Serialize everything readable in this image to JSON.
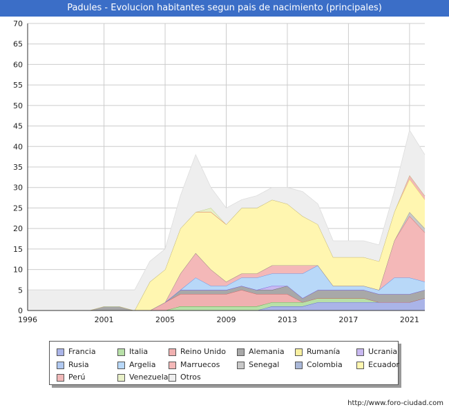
{
  "title": "Padules - Evolucion habitantes segun pais de nacimiento (principales)",
  "source": "http://www.foro-ciudad.com",
  "colors": {
    "title_bar": "#3b6ec7",
    "grid": "#cccccc",
    "axis": "#333333"
  },
  "chart_data": {
    "type": "area",
    "stacked": true,
    "x": [
      1996,
      1997,
      1998,
      1999,
      2000,
      2001,
      2002,
      2003,
      2004,
      2005,
      2006,
      2007,
      2008,
      2009,
      2010,
      2011,
      2012,
      2013,
      2014,
      2015,
      2016,
      2017,
      2018,
      2019,
      2020,
      2021,
      2022
    ],
    "xticks": [
      1996,
      2001,
      2005,
      2009,
      2013,
      2017,
      2021
    ],
    "ylim": [
      0,
      70
    ],
    "yticks": [
      0,
      5,
      10,
      15,
      20,
      25,
      30,
      35,
      40,
      45,
      50,
      55,
      60,
      65,
      70
    ],
    "grid": true,
    "legend_position": "bottom",
    "series": [
      {
        "name": "Francia",
        "fill": "#aab4e8",
        "stroke": "#5566cc",
        "values": [
          0,
          0,
          0,
          0,
          0,
          0,
          0,
          0,
          0,
          0,
          0,
          0,
          0,
          0,
          0,
          0,
          1,
          1,
          1,
          2,
          2,
          2,
          2,
          2,
          2,
          2,
          3
        ]
      },
      {
        "name": "Italia",
        "fill": "#b8e0a8",
        "stroke": "#55aa44",
        "values": [
          0,
          0,
          0,
          0,
          0,
          0,
          0,
          0,
          0,
          0,
          1,
          1,
          1,
          1,
          1,
          1,
          1,
          1,
          1,
          1,
          1,
          1,
          1,
          0,
          0,
          0,
          0
        ]
      },
      {
        "name": "Reino Unido",
        "fill": "#f0b0b0",
        "stroke": "#cc5555",
        "values": [
          0,
          0,
          0,
          0,
          0,
          0,
          0,
          0,
          0,
          2,
          3,
          3,
          3,
          3,
          4,
          3,
          2,
          2,
          0,
          0,
          0,
          0,
          0,
          0,
          0,
          0,
          0
        ]
      },
      {
        "name": "Alemania",
        "fill": "#a8a8a8",
        "stroke": "#666666",
        "values": [
          0,
          0,
          0,
          0,
          0,
          1,
          1,
          0,
          0,
          0,
          1,
          1,
          1,
          1,
          1,
          1,
          1,
          2,
          1,
          2,
          2,
          2,
          2,
          2,
          2,
          2,
          2
        ]
      },
      {
        "name": "Rumanía",
        "fill": "#f8f0a0",
        "stroke": "#ddcc33",
        "values": [
          0,
          0,
          0,
          0,
          0,
          0,
          0,
          0,
          0,
          0,
          0,
          0,
          0,
          0,
          0,
          0,
          0,
          0,
          0,
          0,
          0,
          0,
          0,
          0,
          0,
          0,
          0
        ]
      },
      {
        "name": "Ucrania",
        "fill": "#c8b8f0",
        "stroke": "#7755dd",
        "values": [
          0,
          0,
          0,
          0,
          0,
          0,
          0,
          0,
          0,
          0,
          0,
          0,
          0,
          0,
          0,
          0,
          1,
          0,
          0,
          0,
          0,
          0,
          0,
          0,
          0,
          0,
          0
        ]
      },
      {
        "name": "Rusia",
        "fill": "#b0c8f0",
        "stroke": "#5577cc",
        "values": [
          0,
          0,
          0,
          0,
          0,
          0,
          0,
          0,
          0,
          0,
          0,
          0,
          0,
          0,
          0,
          0,
          0,
          0,
          0,
          0,
          0,
          0,
          0,
          0,
          0,
          0,
          0
        ]
      },
      {
        "name": "Argelia",
        "fill": "#b8d8f8",
        "stroke": "#4488ee",
        "values": [
          0,
          0,
          0,
          0,
          0,
          0,
          0,
          0,
          0,
          0,
          0,
          3,
          1,
          1,
          2,
          3,
          3,
          3,
          6,
          6,
          1,
          1,
          1,
          1,
          4,
          4,
          2
        ]
      },
      {
        "name": "Marruecos",
        "fill": "#f4b8b8",
        "stroke": "#dd6666",
        "values": [
          0,
          0,
          0,
          0,
          0,
          0,
          0,
          0,
          0,
          0,
          4,
          6,
          4,
          1,
          1,
          1,
          2,
          2,
          2,
          0,
          0,
          0,
          0,
          0,
          9,
          15,
          12
        ]
      },
      {
        "name": "Senegal",
        "fill": "#c8c8c8",
        "stroke": "#888888",
        "values": [
          0,
          0,
          0,
          0,
          0,
          0,
          0,
          0,
          0,
          0,
          0,
          0,
          0,
          0,
          0,
          0,
          0,
          0,
          0,
          0,
          0,
          0,
          0,
          0,
          0,
          1,
          1
        ]
      },
      {
        "name": "Colombia",
        "fill": "#aab8d8",
        "stroke": "#5566aa",
        "values": [
          0,
          0,
          0,
          0,
          0,
          0,
          0,
          0,
          0,
          0,
          0,
          0,
          0,
          0,
          0,
          0,
          0,
          0,
          0,
          0,
          0,
          0,
          0,
          0,
          0,
          0,
          0
        ]
      },
      {
        "name": "Ecuador",
        "fill": "#fff6b0",
        "stroke": "#eedd55",
        "values": [
          0,
          0,
          0,
          0,
          0,
          0,
          0,
          0,
          7,
          8,
          11,
          10,
          14,
          14,
          16,
          16,
          16,
          15,
          12,
          10,
          7,
          7,
          7,
          7,
          7,
          8,
          7
        ]
      },
      {
        "name": "Perú",
        "fill": "#f0b8b8",
        "stroke": "#dd4444",
        "values": [
          0,
          0,
          0,
          0,
          0,
          0,
          0,
          0,
          0,
          0,
          0,
          0,
          0,
          0,
          0,
          0,
          0,
          0,
          0,
          0,
          0,
          0,
          0,
          0,
          0,
          1,
          1
        ]
      },
      {
        "name": "Venezuela",
        "fill": "#e8f0c8",
        "stroke": "#bbcc88",
        "values": [
          0,
          0,
          0,
          0,
          0,
          0,
          0,
          0,
          0,
          0,
          0,
          0,
          1,
          0,
          0,
          0,
          0,
          0,
          0,
          0,
          0,
          0,
          0,
          0,
          0,
          0,
          0
        ]
      },
      {
        "name": "Otros",
        "fill": "#eeeeee",
        "stroke": "#dddddd",
        "values": [
          5,
          5,
          5,
          5,
          5,
          4,
          4,
          5,
          5,
          5,
          8,
          14,
          5,
          4,
          2,
          3,
          3,
          4,
          6,
          5,
          4,
          4,
          4,
          4,
          5,
          11,
          10
        ]
      }
    ]
  }
}
